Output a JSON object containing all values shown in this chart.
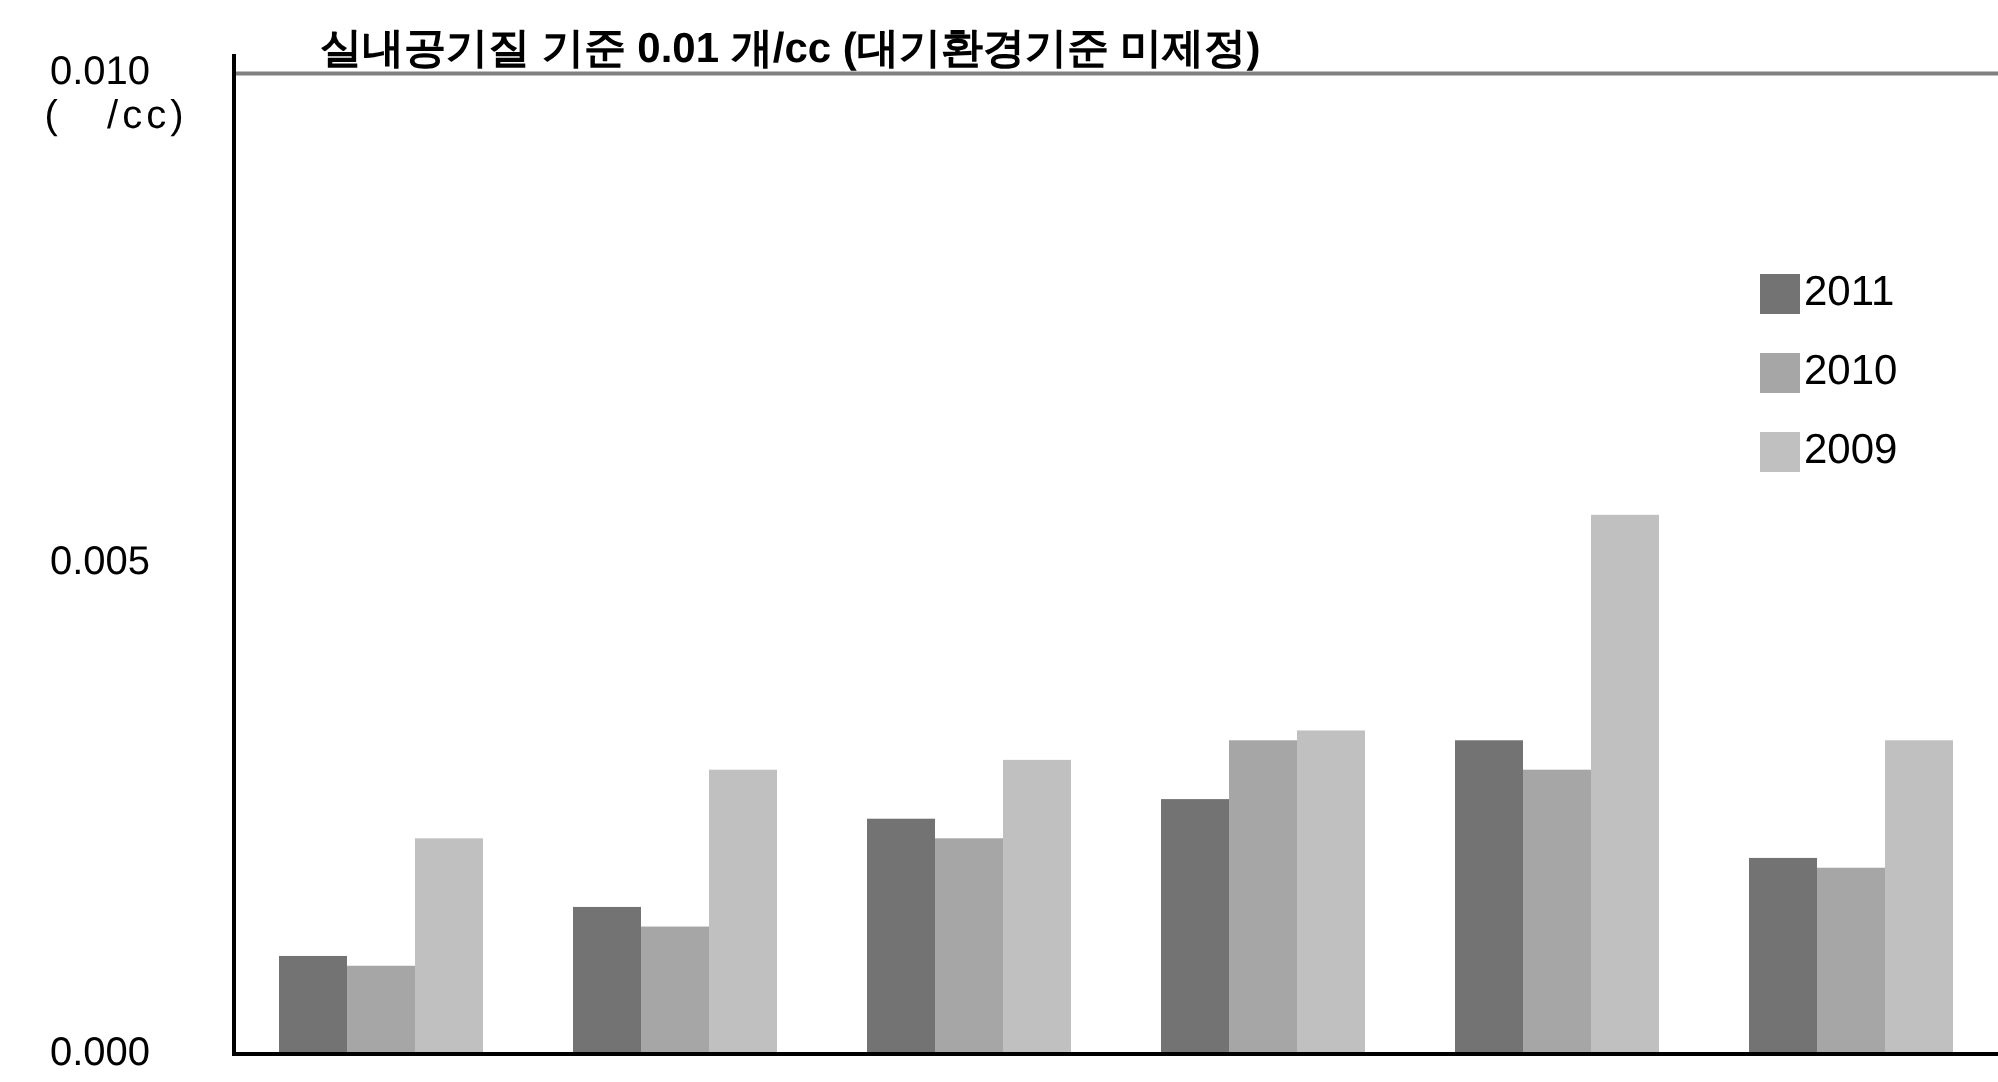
{
  "chart_data": {
    "type": "bar",
    "categories": [
      null,
      null,
      null,
      null,
      null,
      null
    ],
    "series": [
      {
        "name": "2011",
        "color": "#737373",
        "values": [
          0.001,
          0.0015,
          0.0024,
          0.0026,
          0.0032,
          0.002
        ]
      },
      {
        "name": "2010",
        "color": "#a6a6a6",
        "values": [
          0.0009,
          0.0013,
          0.0022,
          0.0032,
          0.0029,
          0.0019
        ]
      },
      {
        "name": "2009",
        "color": "#c0c0c0",
        "values": [
          0.0022,
          0.0029,
          0.003,
          0.0033,
          0.0055,
          0.0032
        ]
      }
    ],
    "ylim": [
      0,
      0.0102
    ],
    "yticks": [
      {
        "value": 0,
        "label": "0.000"
      },
      {
        "value": 0.005,
        "label": "0.005"
      },
      {
        "value": 0.01,
        "label": "0.010"
      }
    ],
    "ylabel": "(   /cc)",
    "ref_lines": [
      {
        "axis": "y",
        "value": 0.01,
        "label": "실내공기질 기준 0.01 개/cc (대기환경기준 미제정)",
        "color": "#808080"
      }
    ],
    "legend": "top right"
  }
}
